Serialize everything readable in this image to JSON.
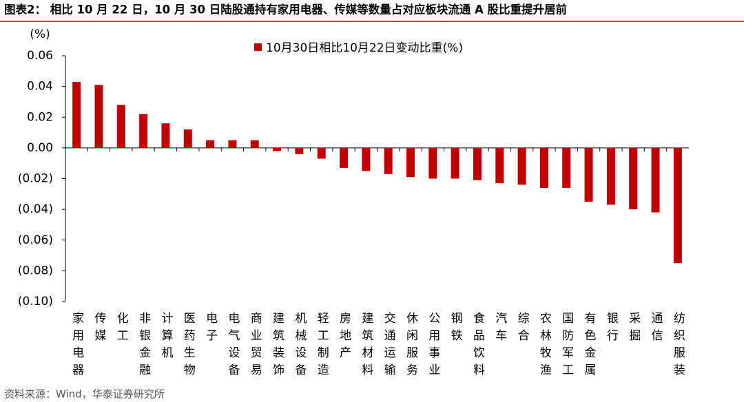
{
  "chart_data": {
    "type": "bar",
    "title": "图表2： 相比 10 月 22 日，10 月 30 日陆股通持有家用电器、传媒等数量占对应板块流通 A 股比重提升居前",
    "y_unit": "(%)",
    "source": "资料来源：Wind，华泰证券研究所",
    "categories": [
      "家用电器",
      "传媒",
      "化工",
      "非银金融",
      "计算机",
      "医药生物",
      "电子",
      "电气设备",
      "商业贸易",
      "建筑装饰",
      "机械设备",
      "轻工制造",
      "房地产",
      "建筑材料",
      "交通运输",
      "休闲服务",
      "公用事业",
      "钢铁",
      "食品饮料",
      "汽车",
      "综合",
      "农林牧渔",
      "国防军工",
      "有色金属",
      "银行",
      "采掘",
      "通信",
      "纺织服装"
    ],
    "series": [
      {
        "name": "10月30日相比10月22日变动比重(%)",
        "color": "#c00000",
        "values": [
          0.043,
          0.041,
          0.028,
          0.022,
          0.016,
          0.012,
          0.005,
          0.005,
          0.005,
          -0.002,
          -0.004,
          -0.007,
          -0.013,
          -0.015,
          -0.017,
          -0.019,
          -0.02,
          -0.02,
          -0.021,
          -0.023,
          -0.024,
          -0.026,
          -0.026,
          -0.035,
          -0.037,
          -0.04,
          -0.042,
          -0.075
        ]
      }
    ],
    "ylim": [
      -0.1,
      0.06
    ],
    "yticks": [
      0.06,
      0.04,
      0.02,
      {
        "value": 0,
        "label": "0.00"
      },
      {
        "value": -0.02,
        "label": "(0.02)"
      },
      {
        "value": -0.04,
        "label": "(0.04)"
      },
      {
        "value": -0.06,
        "label": "(0.06)"
      },
      {
        "value": -0.08,
        "label": "(0.08)"
      },
      {
        "value": -0.1,
        "label": "(0.10)"
      }
    ],
    "legend": "top"
  }
}
